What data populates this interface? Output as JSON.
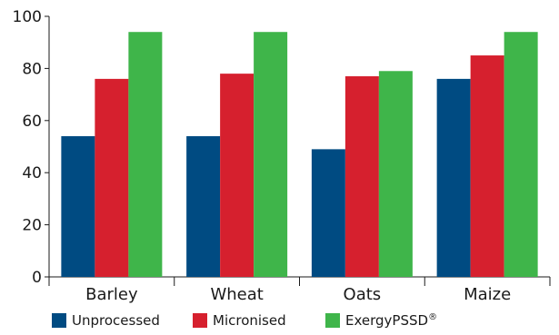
{
  "chart_data": {
    "type": "bar",
    "categories": [
      "Barley",
      "Wheat",
      "Oats",
      "Maize"
    ],
    "series": [
      {
        "name": "Unprocessed",
        "values": [
          54,
          54,
          49,
          76
        ],
        "color": "#004b82"
      },
      {
        "name": "Micronised",
        "values": [
          76,
          78,
          77,
          85
        ],
        "color": "#d6202e"
      },
      {
        "name": "ExergyPSSD",
        "values": [
          94,
          94,
          79,
          94
        ],
        "color": "#3fb54a"
      }
    ],
    "legend_marks": [
      "",
      "",
      "®"
    ],
    "yticks": [
      "0",
      "20",
      "40",
      "60",
      "80",
      "100"
    ],
    "ylim": [
      0,
      100
    ],
    "grid": false,
    "legend_position": "bottom"
  }
}
